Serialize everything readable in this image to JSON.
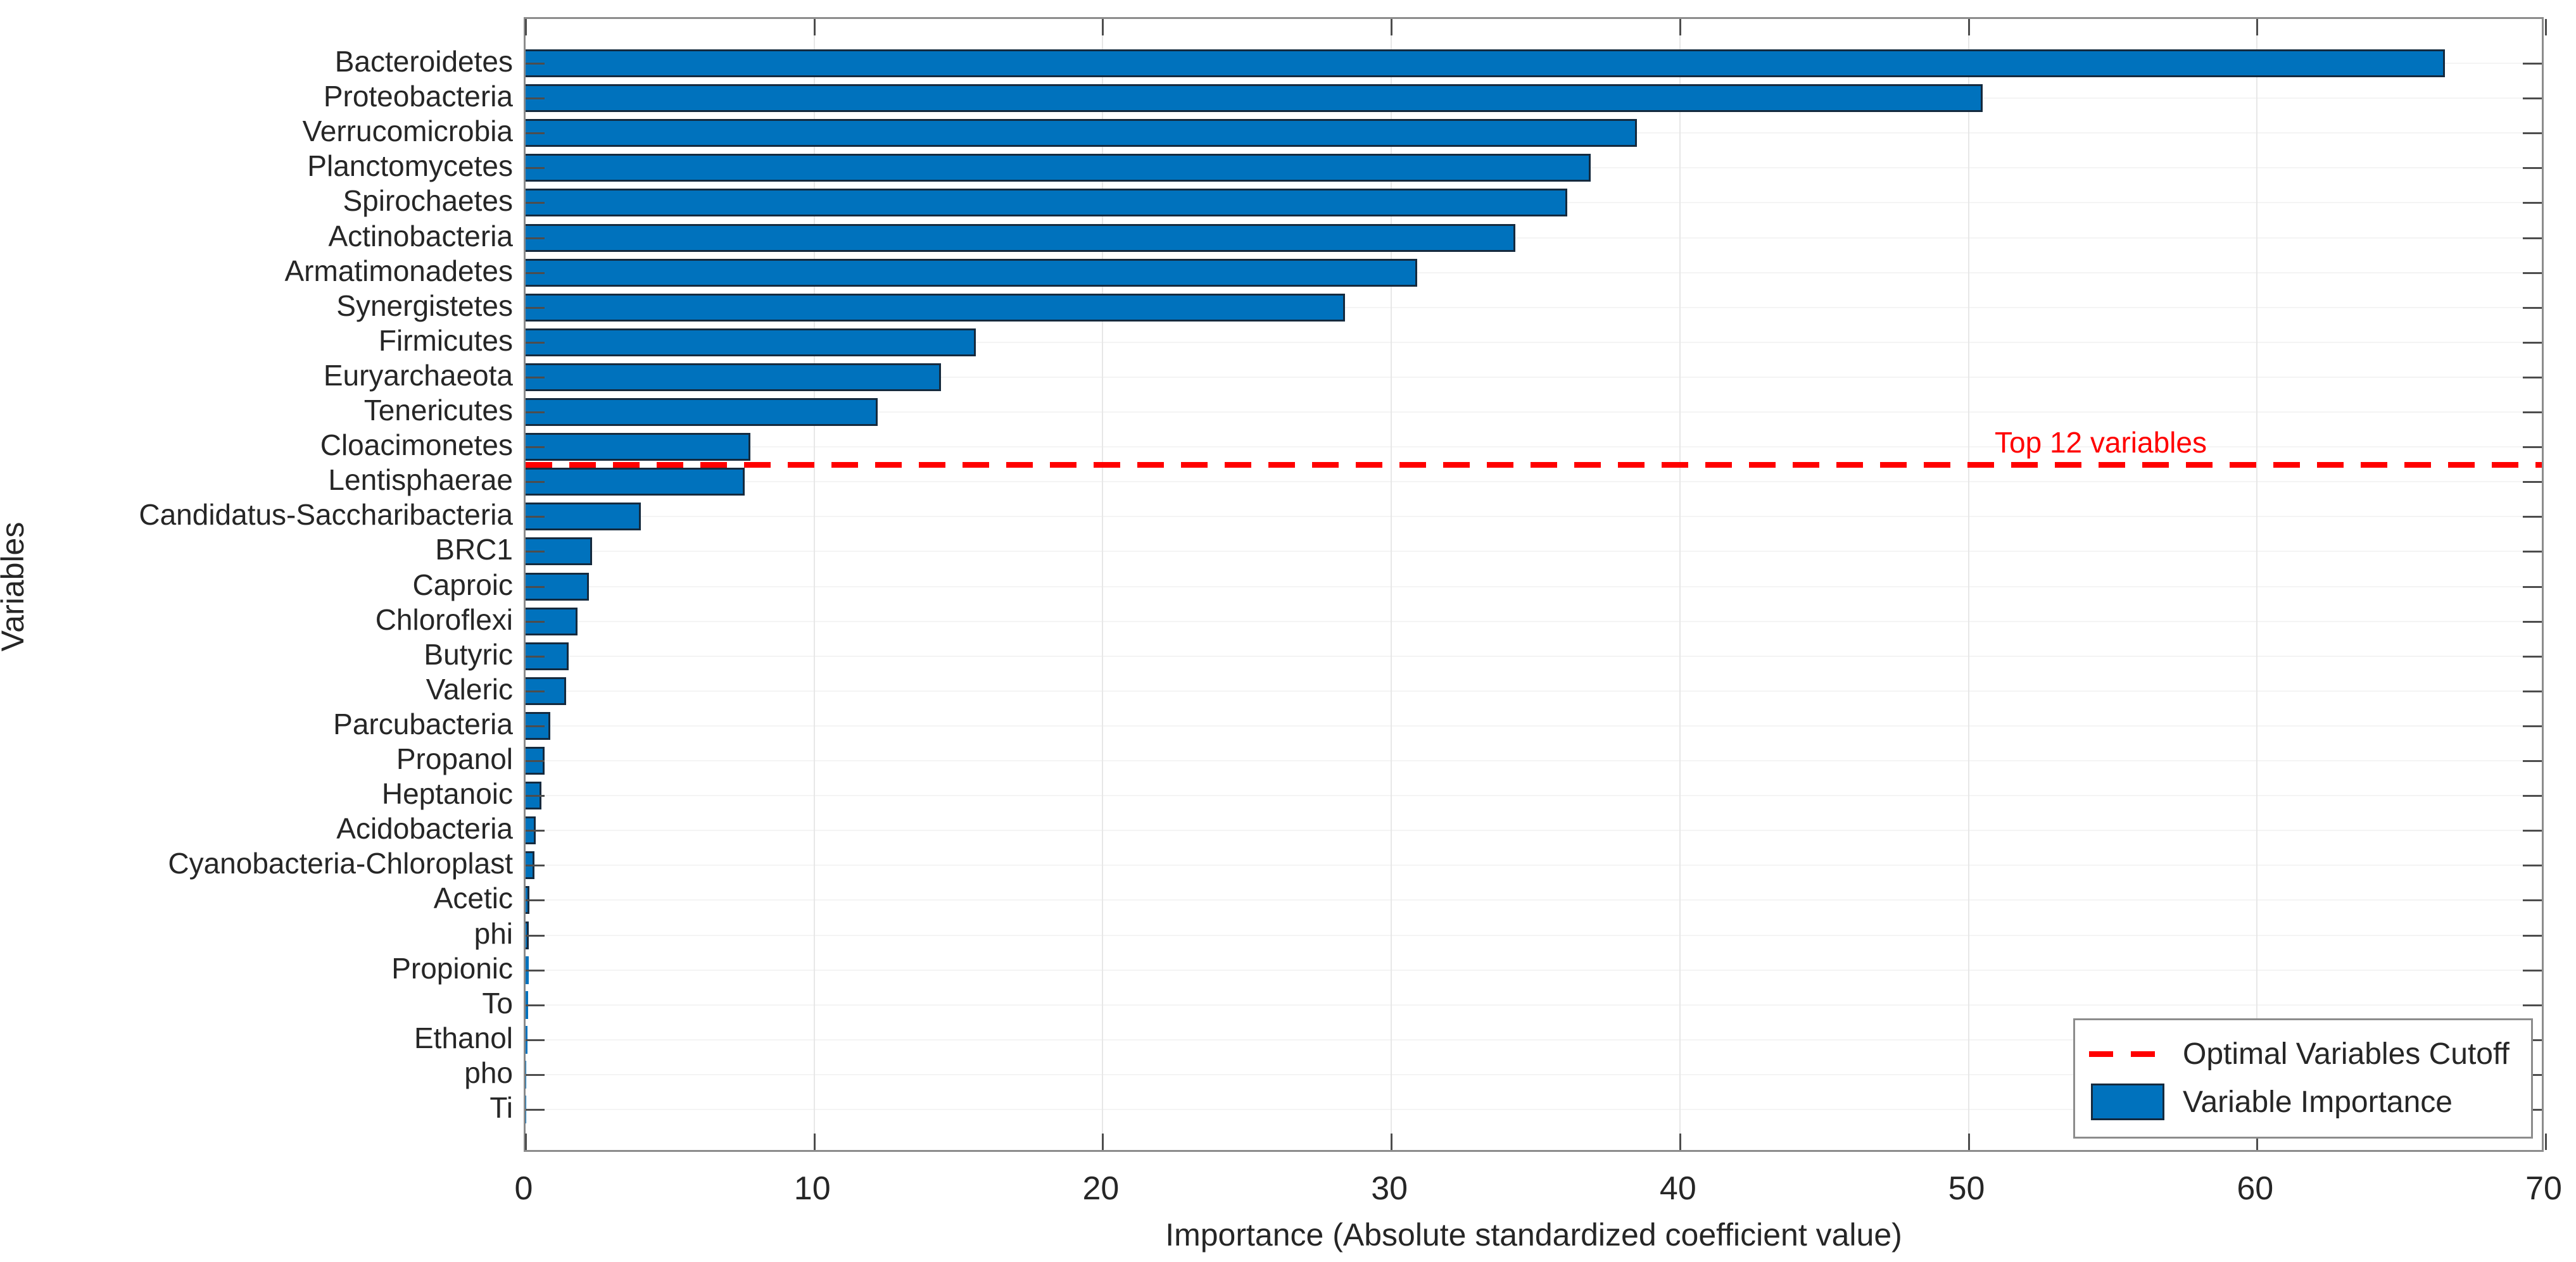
{
  "figure": {
    "ylabel": "Variables",
    "xlabel": "Importance (Absolute standardized coefficient value)",
    "annotation": {
      "text": "Top 12 variables",
      "color": "#ff0000"
    },
    "legend": {
      "items": [
        {
          "icon": "dashed-line",
          "label": "Optimal Variables Cutoff",
          "color": "#ff0000"
        },
        {
          "icon": "filled-swatch",
          "label": "Variable Importance",
          "color": "#0072bd"
        }
      ]
    },
    "colors": {
      "bar_fill": "#0072bd",
      "bar_edge": "#152a3e",
      "cutoff_red": "#ff0000",
      "frame_gray": "#8c8c8c",
      "text_dark": "#262626"
    }
  },
  "chart_data": {
    "type": "bar",
    "orientation": "horizontal",
    "title": "",
    "xlabel": "Importance (Absolute standardized coefficient value)",
    "ylabel": "Variables",
    "xlim": [
      0,
      70
    ],
    "xticks": [
      0,
      10,
      20,
      30,
      40,
      50,
      60,
      70
    ],
    "grid": "on",
    "legend_position": "southeast",
    "categories": [
      "Bacteroidetes",
      "Proteobacteria",
      "Verrucomicrobia",
      "Planctomycetes",
      "Spirochaetes",
      "Actinobacteria",
      "Armatimonadetes",
      "Synergistetes",
      "Firmicutes",
      "Euryarchaeota",
      "Tenericutes",
      "Cloacimonetes",
      "Lentisphaerae",
      "Candidatus-Saccharibacteria",
      "BRC1",
      "Caproic",
      "Chloroflexi",
      "Butyric",
      "Valeric",
      "Parcubacteria",
      "Propanol",
      "Heptanoic",
      "Acidobacteria",
      "Cyanobacteria-Chloroplast",
      "Acetic",
      "phi",
      "Propionic",
      "To",
      "Ethanol",
      "pho",
      "Ti"
    ],
    "values": [
      66.5,
      50.5,
      38.5,
      36.9,
      36.1,
      34.3,
      30.9,
      28.4,
      15.6,
      14.4,
      12.2,
      7.8,
      7.6,
      4.0,
      2.3,
      2.2,
      1.8,
      1.5,
      1.4,
      0.85,
      0.65,
      0.55,
      0.35,
      0.3,
      0.13,
      0.12,
      0.1,
      0.08,
      0.06,
      0.02,
      0.01
    ],
    "series_name": "Variable Importance",
    "cutoff_after_rank": 12,
    "cutoff_label": "Top 12 variables"
  }
}
